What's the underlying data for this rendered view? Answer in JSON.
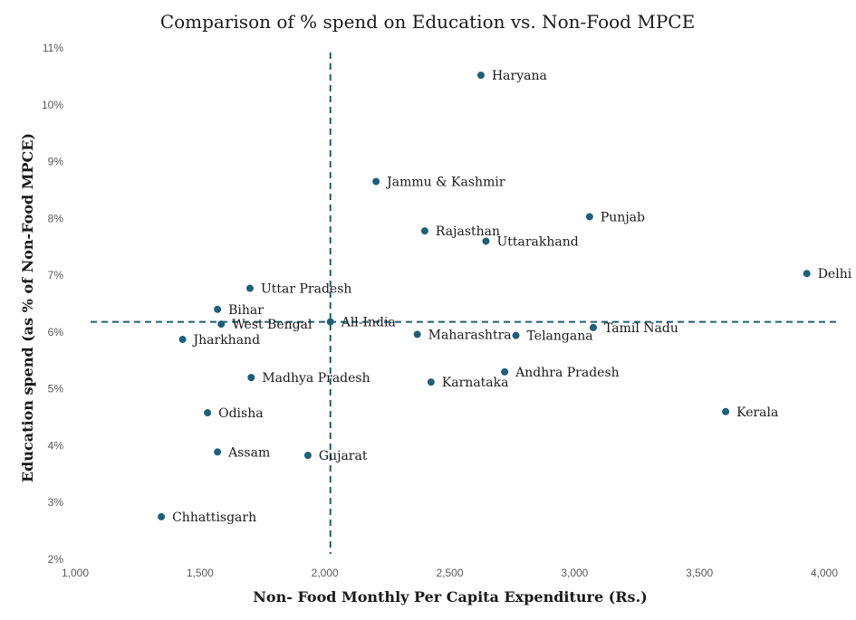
{
  "chart_data": {
    "type": "scatter",
    "title": "Comparison of % spend on Education vs. Non-Food MPCE",
    "xlabel": "Non- Food Monthly Per Capita Expenditure (Rs.)",
    "ylabel": "Education spend (as % of Non-Food MPCE)",
    "xlim": [
      1000,
      4000
    ],
    "ylim": [
      2,
      11
    ],
    "xticks": [
      "1,000",
      "1,500",
      "2,000",
      "2,500",
      "3,000",
      "3,500",
      "4,000"
    ],
    "yticks": [
      "2%",
      "3%",
      "4%",
      "5%",
      "6%",
      "7%",
      "8%",
      "9%",
      "10%",
      "11%"
    ],
    "grid": false,
    "point_color": "#1f5f7a",
    "reference_lines": {
      "x": 2022,
      "y": 6.18
    },
    "points": [
      {
        "label": "Haryana",
        "x": 2625,
        "y": 10.52
      },
      {
        "label": "Jammu & Kashmir",
        "x": 2205,
        "y": 8.65
      },
      {
        "label": "Punjab",
        "x": 3060,
        "y": 8.03
      },
      {
        "label": "Rajasthan",
        "x": 2400,
        "y": 7.78
      },
      {
        "label": "Uttarakhand",
        "x": 2645,
        "y": 7.6
      },
      {
        "label": "Delhi",
        "x": 3930,
        "y": 7.03
      },
      {
        "label": "Uttar Pradesh",
        "x": 1700,
        "y": 6.77
      },
      {
        "label": "Bihar",
        "x": 1570,
        "y": 6.4
      },
      {
        "label": "West Bengal",
        "x": 1585,
        "y": 6.14
      },
      {
        "label": "All-India",
        "x": 2022,
        "y": 6.18
      },
      {
        "label": "Jharkhand",
        "x": 1430,
        "y": 5.87
      },
      {
        "label": "Maharashtra",
        "x": 2370,
        "y": 5.96
      },
      {
        "label": "Telangana",
        "x": 2765,
        "y": 5.94
      },
      {
        "label": "Tamil Nadu",
        "x": 3075,
        "y": 6.08
      },
      {
        "label": "Madhya Pradesh",
        "x": 1705,
        "y": 5.2
      },
      {
        "label": "Karnataka",
        "x": 2425,
        "y": 5.12
      },
      {
        "label": "Andhra Pradesh",
        "x": 2720,
        "y": 5.3
      },
      {
        "label": "Kerala",
        "x": 3605,
        "y": 4.6
      },
      {
        "label": "Odisha",
        "x": 1530,
        "y": 4.58
      },
      {
        "label": "Assam",
        "x": 1570,
        "y": 3.89
      },
      {
        "label": "Gujarat",
        "x": 1932,
        "y": 3.83
      },
      {
        "label": "Chhattisgarh",
        "x": 1345,
        "y": 2.75
      }
    ]
  }
}
